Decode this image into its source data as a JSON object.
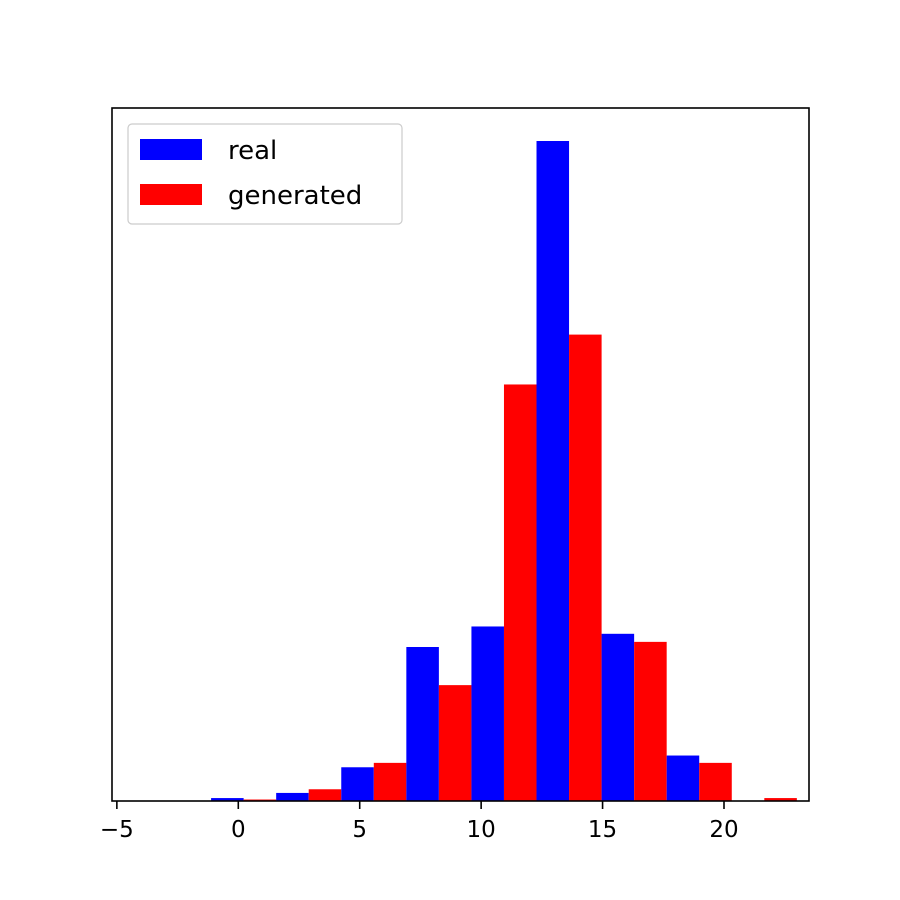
{
  "chart_data": {
    "type": "bar",
    "bins": [
      {
        "left": -1.12,
        "right": 1.56,
        "real": 0.4,
        "generated": 0.2
      },
      {
        "left": 1.56,
        "right": 4.24,
        "real": 1.1,
        "generated": 1.6
      },
      {
        "left": 4.24,
        "right": 6.92,
        "real": 4.6,
        "generated": 5.2
      },
      {
        "left": 6.92,
        "right": 9.6,
        "real": 21.0,
        "generated": 15.8
      },
      {
        "left": 9.6,
        "right": 12.28,
        "real": 23.8,
        "generated": 56.8
      },
      {
        "left": 12.28,
        "right": 14.96,
        "real": 90.0,
        "generated": 63.6
      },
      {
        "left": 14.96,
        "right": 17.64,
        "real": 22.8,
        "generated": 21.7
      },
      {
        "left": 17.64,
        "right": 20.32,
        "real": 6.2,
        "generated": 5.2
      },
      {
        "left": 20.32,
        "right": 23.0,
        "real": 0.0,
        "generated": 0.4
      }
    ],
    "series": [
      {
        "name": "real",
        "color": "#0000ff"
      },
      {
        "name": "generated",
        "color": "#ff0000"
      }
    ],
    "xlim": [
      -5.2,
      23.5
    ],
    "ylim": [
      0,
      94.5
    ],
    "xticks": [
      -5,
      0,
      5,
      10,
      15,
      20
    ],
    "xtick_labels": [
      "−5",
      "0",
      "5",
      "10",
      "15",
      "20"
    ],
    "title": "",
    "xlabel": "",
    "ylabel": "",
    "grid": false,
    "legend_position": "upper-left"
  }
}
